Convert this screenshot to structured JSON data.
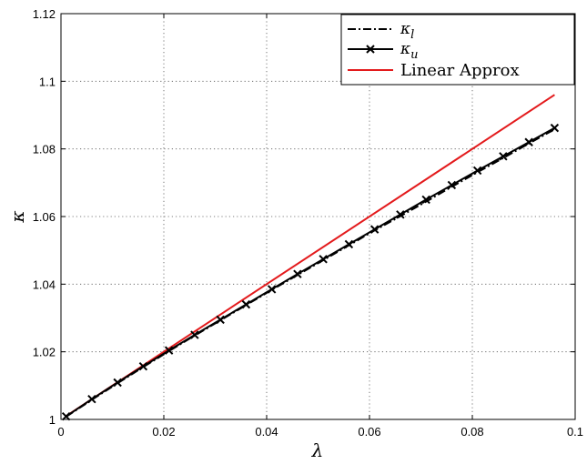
{
  "chart_data": {
    "type": "line",
    "title": "",
    "xlabel": "λ",
    "ylabel": "κ",
    "xlim": [
      0,
      0.1
    ],
    "ylim": [
      1,
      1.12
    ],
    "xticks": [
      0,
      0.02,
      0.04,
      0.06,
      0.08,
      0.1
    ],
    "xtick_labels": [
      "0",
      "0.02",
      "0.04",
      "0.06",
      "0.08",
      "0.1"
    ],
    "yticks": [
      1,
      1.02,
      1.04,
      1.06,
      1.08,
      1.1,
      1.12
    ],
    "ytick_labels": [
      "1",
      "1.02",
      "1.04",
      "1.06",
      "1.08",
      "1.1",
      "1.12"
    ],
    "grid": true,
    "legend_position": "top-right",
    "legend": {
      "kl_base": "κ",
      "kl_sub": "l",
      "ku_base": "κ",
      "ku_sub": "u",
      "linear": "Linear Approx"
    },
    "series": [
      {
        "key": "kappa_l",
        "style": "dash-dot",
        "color": "#000000",
        "x": [
          0.001,
          0.006,
          0.011,
          0.016,
          0.021,
          0.026,
          0.031,
          0.036,
          0.041,
          0.046,
          0.051,
          0.056,
          0.061,
          0.066,
          0.071,
          0.076,
          0.081,
          0.086,
          0.091,
          0.096
        ],
        "values": [
          1.0008,
          1.0058,
          1.0107,
          1.0155,
          1.0202,
          1.0248,
          1.0293,
          1.0338,
          1.0383,
          1.0427,
          1.0471,
          1.0515,
          1.0559,
          1.0601,
          1.0644,
          1.0688,
          1.0731,
          1.0773,
          1.0816,
          1.0858
        ]
      },
      {
        "key": "kappa_u",
        "style": "solid-x-marker",
        "color": "#000000",
        "x": [
          0.001,
          0.006,
          0.011,
          0.016,
          0.021,
          0.026,
          0.031,
          0.036,
          0.041,
          0.046,
          0.051,
          0.056,
          0.061,
          0.066,
          0.071,
          0.076,
          0.081,
          0.086,
          0.091,
          0.096
        ],
        "values": [
          1.0009,
          1.006,
          1.0109,
          1.0157,
          1.0204,
          1.025,
          1.0295,
          1.034,
          1.0385,
          1.043,
          1.0474,
          1.0518,
          1.0562,
          1.0606,
          1.065,
          1.0693,
          1.0736,
          1.0778,
          1.082,
          1.0862
        ]
      },
      {
        "key": "linear",
        "style": "solid",
        "color": "#e31a1c",
        "x": [
          0.001,
          0.096
        ],
        "values": [
          1.001,
          1.096
        ]
      }
    ]
  }
}
